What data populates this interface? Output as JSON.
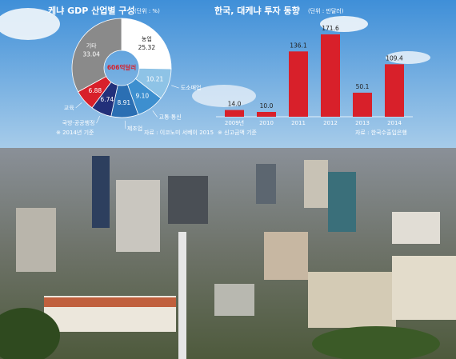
{
  "chart_data": [
    {
      "type": "donut",
      "title": "케냐 GDP 산업별 구성",
      "subtitle": "(단위 : %)",
      "center_label": "606억달러",
      "categories": [
        "농업",
        "도소매업",
        "교통·통신",
        "제조업",
        "국방·공공행정",
        "교육",
        "기타"
      ],
      "values": [
        25.32,
        10.21,
        9.1,
        8.91,
        6.74,
        6.88,
        33.04
      ],
      "value_labels": [
        "25.32",
        "10.21",
        "9.10",
        "8.91",
        "6.74",
        "6.88",
        "33.04"
      ],
      "colors": [
        "#ffffff",
        "#8ec3e6",
        "#3d8fcf",
        "#2b6fb3",
        "#22307a",
        "#d8202a",
        "#8a8a8a"
      ],
      "note": "※ 2014년 기준",
      "source": "자료 : 이코노미 서베이 2015"
    },
    {
      "type": "bar",
      "title": "한국, 대케냐 투자 동향",
      "subtitle": "(단위 : 만달러)",
      "categories": [
        "2009년",
        "2010",
        "2011",
        "2012",
        "2013",
        "2014"
      ],
      "values": [
        14.0,
        10.0,
        136.1,
        171.6,
        50.1,
        109.4
      ],
      "value_labels": [
        "14.0",
        "10.0",
        "136.1",
        "171.6",
        "50.1",
        "109.4"
      ],
      "color": "#d8202a",
      "note": "※ 신고금액 기준",
      "source": "자료 : 한국수출입은행"
    }
  ]
}
